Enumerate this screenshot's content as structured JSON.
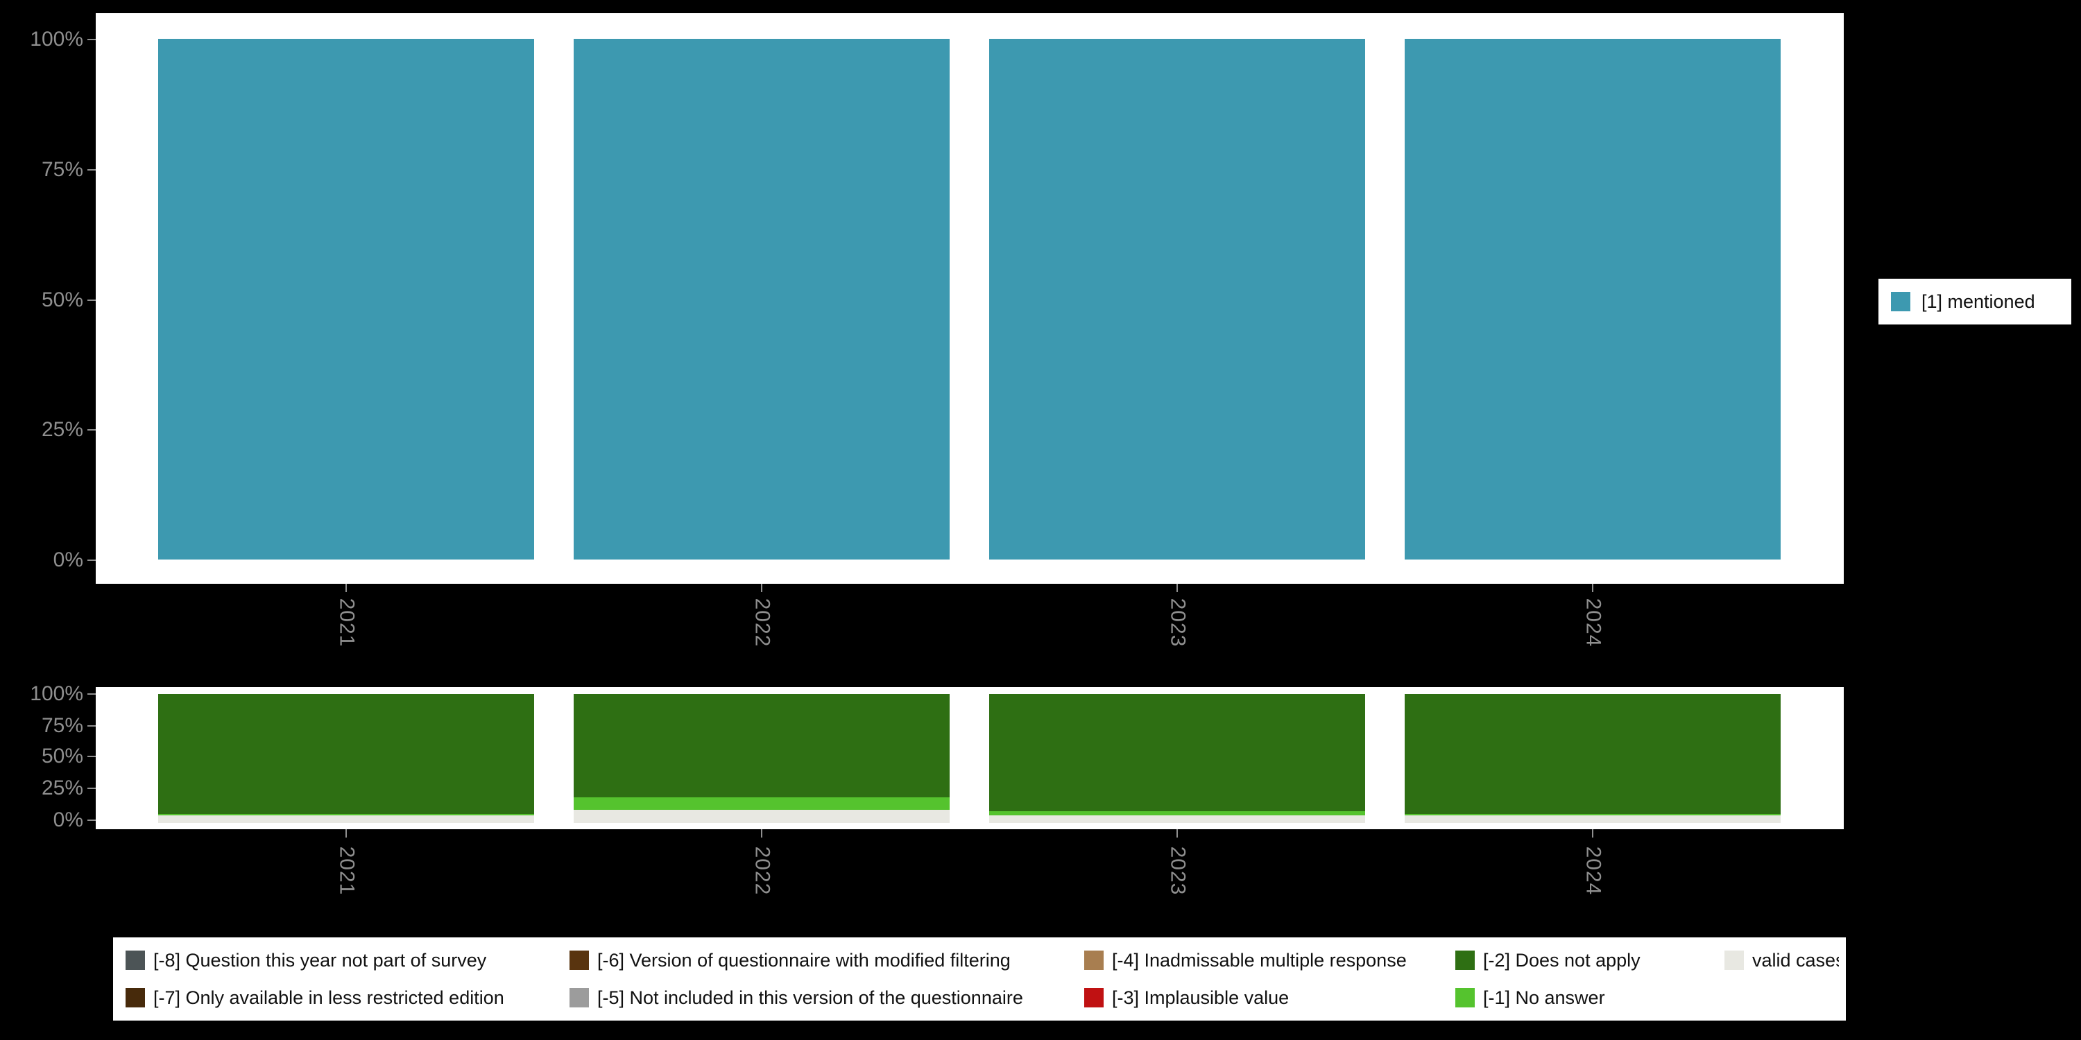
{
  "background_color": "#000000",
  "axis_text_color": "#8f8f8f",
  "chart_data": [
    {
      "type": "bar",
      "stacked": true,
      "categories": [
        "2021",
        "2022",
        "2023",
        "2024"
      ],
      "y_ticks": [
        "0%",
        "25%",
        "50%",
        "75%",
        "100%"
      ],
      "ylim": [
        0,
        100
      ],
      "tick_label_rotation": 90,
      "grid": false,
      "legend_position": "right",
      "series": [
        {
          "name": "[1] mentioned",
          "color": "#3d99b0",
          "values": [
            100,
            100,
            100,
            100
          ]
        }
      ]
    },
    {
      "type": "bar",
      "stacked": true,
      "categories": [
        "2021",
        "2022",
        "2023",
        "2024"
      ],
      "y_ticks": [
        "0%",
        "25%",
        "50%",
        "75%",
        "100%"
      ],
      "ylim": [
        0,
        100
      ],
      "tick_label_rotation": 90,
      "grid": false,
      "legend_position": "bottom",
      "series": [
        {
          "name": "valid cases",
          "color": "#e8e8e2",
          "values": [
            6,
            10,
            6,
            6
          ]
        },
        {
          "name": "[-1] No answer",
          "color": "#55c32e",
          "values": [
            1,
            10,
            3,
            1
          ]
        },
        {
          "name": "[-2] Does not apply",
          "color": "#2e6f13",
          "values": [
            93,
            80,
            91,
            93
          ]
        }
      ]
    }
  ],
  "right_legend": {
    "items": [
      {
        "label": "[1] mentioned",
        "color": "#3d99b0"
      }
    ]
  },
  "bottom_legend": {
    "items": [
      {
        "label": "[-8] Question this year not part of survey",
        "color": "#4c5456"
      },
      {
        "label": "[-7] Only available in less restricted edition",
        "color": "#472a0b"
      },
      {
        "label": "[-6] Version of questionnaire with modified filtering",
        "color": "#59340f"
      },
      {
        "label": "[-5] Not included in this version of the questionnaire",
        "color": "#9c9c9c"
      },
      {
        "label": "[-4] Inadmissable multiple response",
        "color": "#a87e50"
      },
      {
        "label": "[-3] Implausible value",
        "color": "#c01112"
      },
      {
        "label": "[-2] Does not apply",
        "color": "#2e6f13"
      },
      {
        "label": "[-1] No answer",
        "color": "#55c32e"
      },
      {
        "label": "valid cases",
        "color": "#e8e8e2"
      }
    ]
  }
}
